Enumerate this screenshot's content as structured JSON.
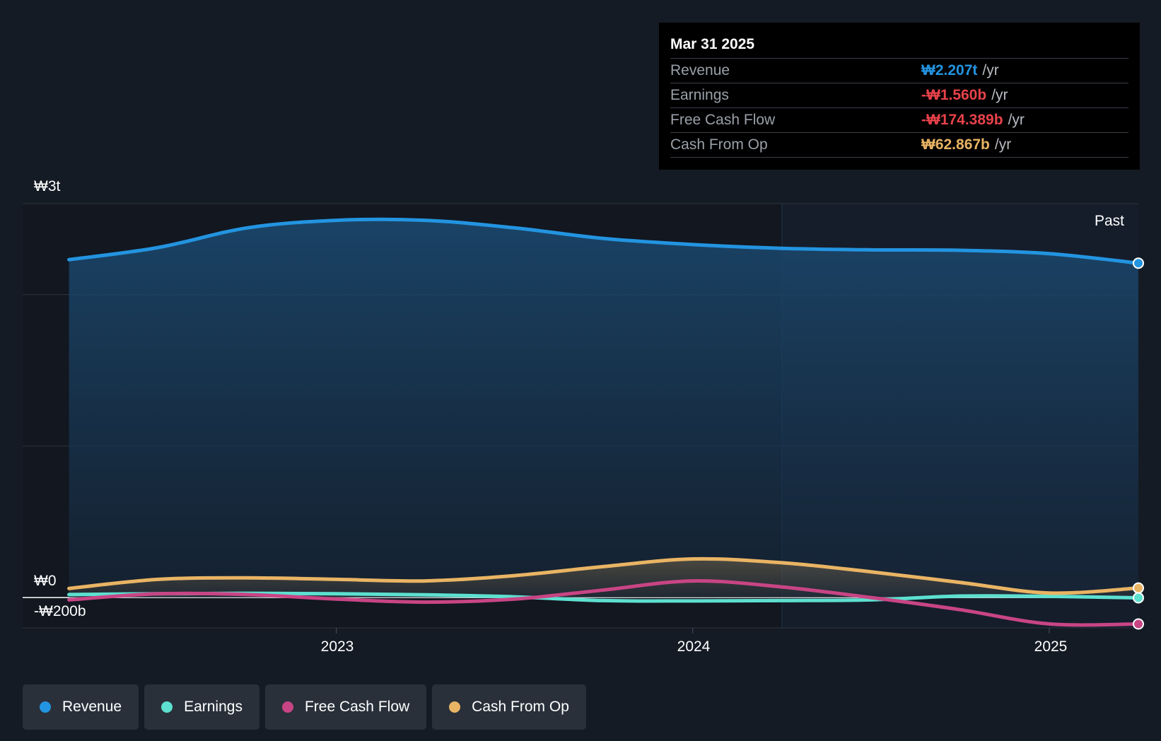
{
  "tooltip": {
    "date": "Mar 31 2025",
    "rows": [
      {
        "label": "Revenue",
        "value": "₩2.207t",
        "unit": "/yr",
        "color": "#2394e0"
      },
      {
        "label": "Earnings",
        "value": "-₩1.560b",
        "unit": "/yr",
        "color": "#e8424a"
      },
      {
        "label": "Free Cash Flow",
        "value": "-₩174.389b",
        "unit": "/yr",
        "color": "#e8424a"
      },
      {
        "label": "Cash From Op",
        "value": "₩62.867b",
        "unit": "/yr",
        "color": "#e9b464"
      }
    ]
  },
  "past_label": "Past",
  "legend": [
    {
      "label": "Revenue",
      "color": "#2394e0"
    },
    {
      "label": "Earnings",
      "color": "#5de0d0"
    },
    {
      "label": "Free Cash Flow",
      "color": "#c84585"
    },
    {
      "label": "Cash From Op",
      "color": "#e9b464"
    }
  ],
  "chart_data": {
    "type": "area",
    "y_tick_labels": [
      "₩3t",
      "₩0",
      "-₩200b"
    ],
    "x_tick_labels": [
      "2023",
      "2024",
      "2025"
    ],
    "ylim": [
      -200,
      2600
    ],
    "y_gridlines": [
      -200,
      0,
      1000,
      2000,
      2600
    ],
    "x_ticks": [
      2023.0,
      2024.0,
      2025.0
    ],
    "xlim": [
      2022.12,
      2025.25
    ],
    "past_start": 2024.25,
    "grid": true,
    "legend_position": "bottom-left",
    "series": [
      {
        "name": "Revenue",
        "color": "#2394e0",
        "points": [
          [
            2022.25,
            2230
          ],
          [
            2022.5,
            2310
          ],
          [
            2022.75,
            2440
          ],
          [
            2023.0,
            2490
          ],
          [
            2023.25,
            2490
          ],
          [
            2023.5,
            2440
          ],
          [
            2023.75,
            2370
          ],
          [
            2024.0,
            2330
          ],
          [
            2024.25,
            2305
          ],
          [
            2024.5,
            2295
          ],
          [
            2024.75,
            2292
          ],
          [
            2025.0,
            2270
          ],
          [
            2025.25,
            2207
          ]
        ]
      },
      {
        "name": "Earnings",
        "color": "#5de0d0",
        "points": [
          [
            2022.25,
            20
          ],
          [
            2022.5,
            25
          ],
          [
            2022.75,
            28
          ],
          [
            2023.0,
            25
          ],
          [
            2023.25,
            18
          ],
          [
            2023.5,
            5
          ],
          [
            2023.75,
            -20
          ],
          [
            2024.0,
            -22
          ],
          [
            2024.25,
            -20
          ],
          [
            2024.5,
            -15
          ],
          [
            2024.75,
            10
          ],
          [
            2025.0,
            8
          ],
          [
            2025.25,
            -1.56
          ]
        ]
      },
      {
        "name": "Free Cash Flow",
        "color": "#c84585",
        "points": [
          [
            2022.25,
            -15
          ],
          [
            2022.5,
            25
          ],
          [
            2022.75,
            20
          ],
          [
            2023.0,
            -10
          ],
          [
            2023.25,
            -30
          ],
          [
            2023.5,
            -10
          ],
          [
            2023.75,
            50
          ],
          [
            2024.0,
            110
          ],
          [
            2024.25,
            70
          ],
          [
            2024.5,
            0
          ],
          [
            2024.75,
            -80
          ],
          [
            2025.0,
            -174
          ],
          [
            2025.25,
            -174.389
          ]
        ]
      },
      {
        "name": "Cash From Op",
        "color": "#e9b464",
        "points": [
          [
            2022.25,
            60
          ],
          [
            2022.5,
            120
          ],
          [
            2022.75,
            130
          ],
          [
            2023.0,
            120
          ],
          [
            2023.25,
            110
          ],
          [
            2023.5,
            145
          ],
          [
            2023.75,
            205
          ],
          [
            2024.0,
            255
          ],
          [
            2024.25,
            230
          ],
          [
            2024.5,
            170
          ],
          [
            2024.75,
            100
          ],
          [
            2025.0,
            30
          ],
          [
            2025.25,
            62.867
          ]
        ]
      }
    ]
  }
}
